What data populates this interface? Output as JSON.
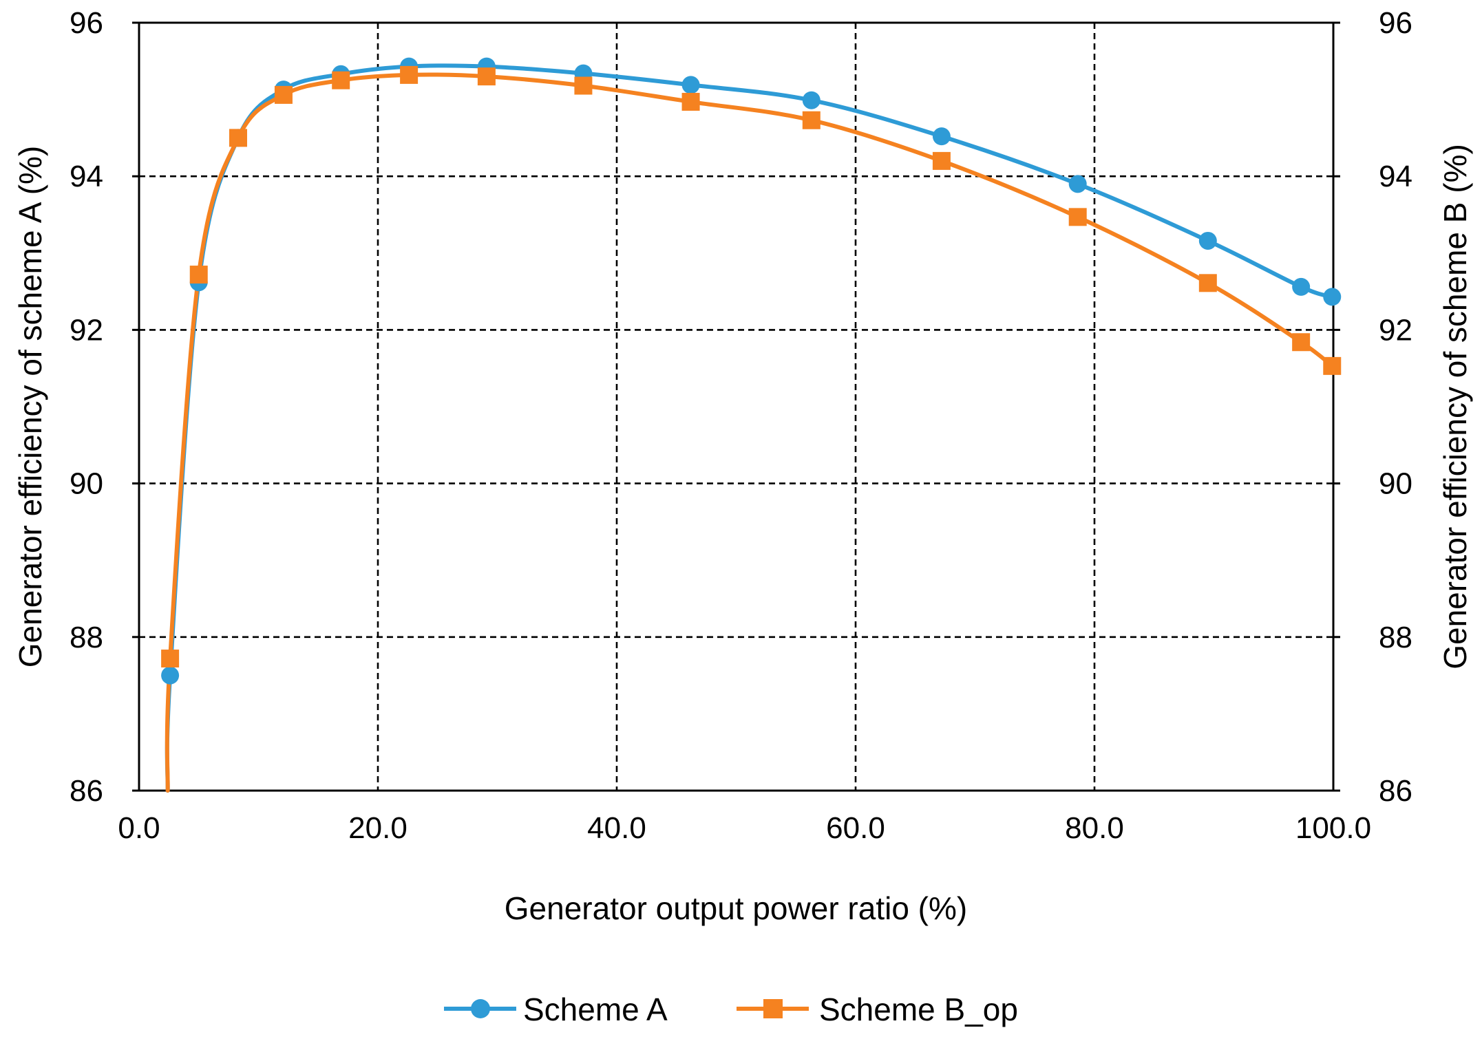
{
  "chart_data": {
    "type": "line",
    "xlabel": "Generator output power ratio (%)",
    "ylabel_left": "Generator efficiency of scheme A (%)",
    "ylabel_right": "Generator efficiency of scheme B (%)",
    "xlim": [
      0,
      100
    ],
    "ylim": [
      86,
      96
    ],
    "x_ticks": [
      "0.0",
      "20.0",
      "40.0",
      "60.0",
      "80.0",
      "100.0"
    ],
    "x_tick_values": [
      0,
      20,
      40,
      60,
      80,
      100
    ],
    "y_ticks": [
      "86",
      "88",
      "90",
      "92",
      "94",
      "96"
    ],
    "y_tick_values": [
      86,
      88,
      90,
      92,
      94,
      96
    ],
    "grid": true,
    "legend_position": "bottom",
    "series": [
      {
        "name": "Scheme A",
        "color": "#2E9BD6",
        "marker": "circle",
        "x": [
          2.6,
          5.0,
          8.3,
          12.1,
          16.9,
          22.6,
          29.1,
          37.2,
          46.2,
          56.3,
          67.2,
          78.6,
          89.5,
          97.3,
          99.9
        ],
        "y": [
          87.5,
          92.62,
          94.5,
          95.13,
          95.33,
          95.43,
          95.43,
          95.34,
          95.19,
          94.99,
          94.52,
          93.9,
          93.16,
          92.56,
          92.43
        ]
      },
      {
        "name": "Scheme B_op",
        "color": "#F58220",
        "marker": "square",
        "x": [
          2.6,
          5.0,
          8.3,
          12.1,
          16.9,
          22.6,
          29.1,
          37.2,
          46.2,
          56.3,
          67.2,
          78.6,
          89.5,
          97.3,
          99.9
        ],
        "y": [
          87.72,
          92.72,
          94.5,
          95.06,
          95.25,
          95.32,
          95.3,
          95.18,
          94.97,
          94.73,
          94.2,
          93.47,
          92.61,
          91.84,
          91.53
        ]
      }
    ],
    "curve_start": {
      "x": 2.4,
      "y": 86.0
    }
  }
}
